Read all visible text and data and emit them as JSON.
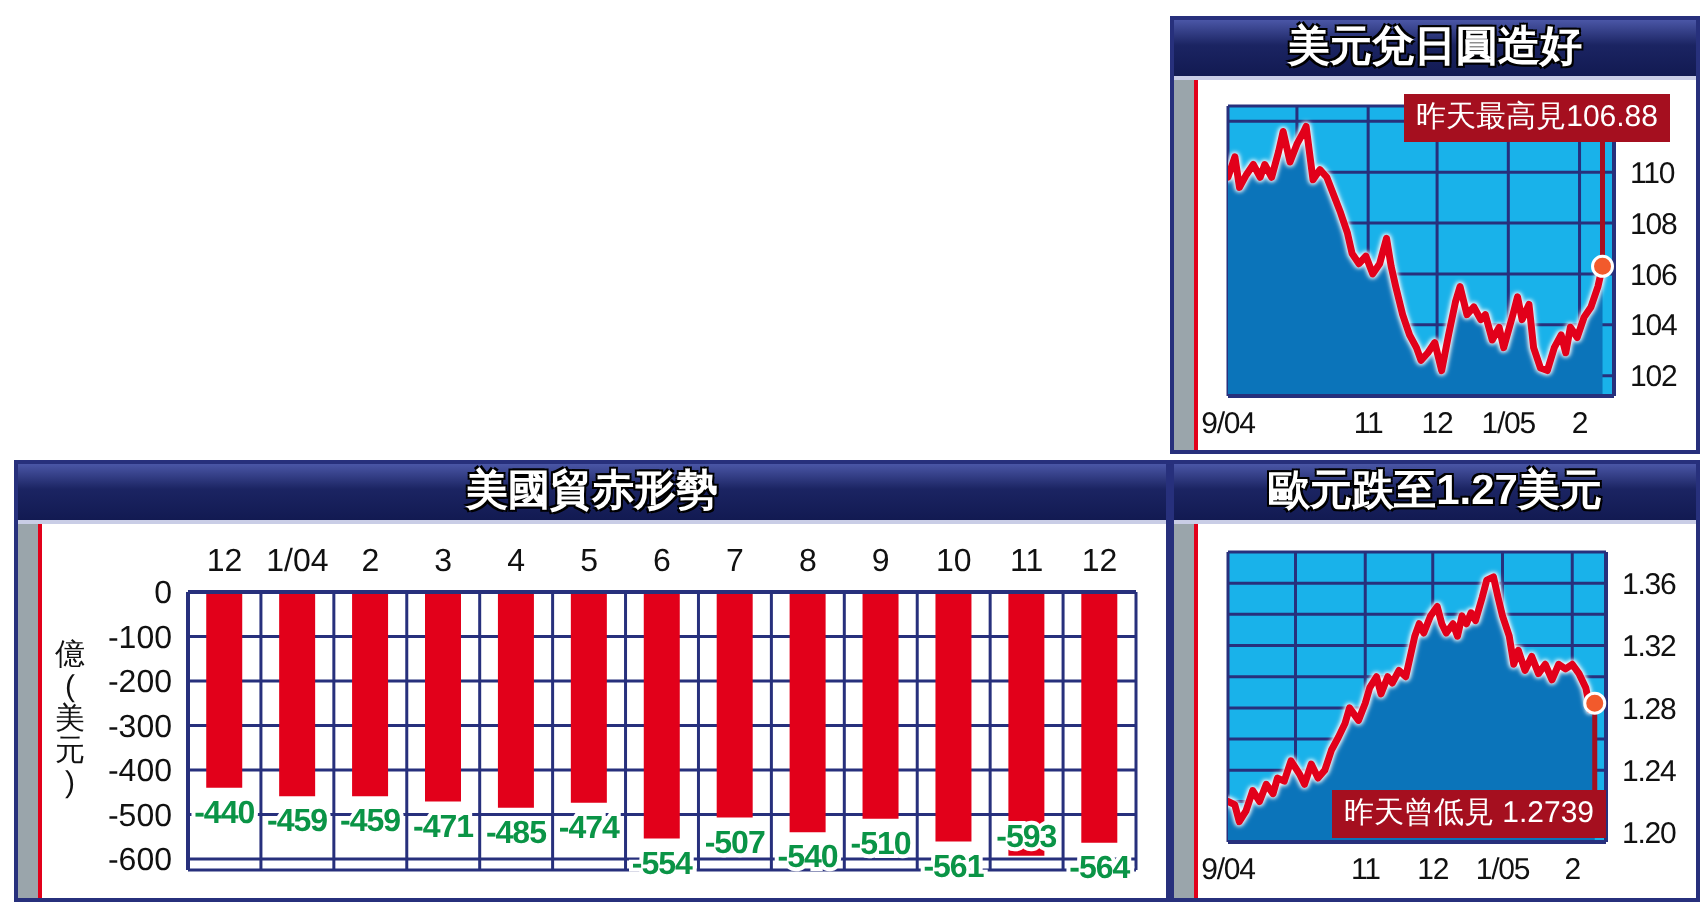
{
  "chart_data": [
    {
      "type": "area",
      "title": "美元兌日圓造好",
      "x": [
        "2004-09-01",
        "2004-09-04",
        "2004-09-06",
        "2004-09-09",
        "2004-09-12",
        "2004-09-15",
        "2004-09-17",
        "2004-09-20",
        "2004-09-23",
        "2004-09-25",
        "2004-09-28",
        "2004-10-01",
        "2004-10-04",
        "2004-10-05",
        "2004-10-08",
        "2004-10-11",
        "2004-10-14",
        "2004-10-17",
        "2004-10-20",
        "2004-10-23",
        "2004-10-25",
        "2004-10-28",
        "2004-10-31",
        "2004-11-03",
        "2004-11-06",
        "2004-11-09",
        "2004-11-11",
        "2004-11-13",
        "2004-11-16",
        "2004-11-19",
        "2004-11-22",
        "2004-11-24",
        "2004-11-27",
        "2004-11-30",
        "2004-12-03",
        "2004-12-06",
        "2004-12-09",
        "2004-12-11",
        "2004-12-14",
        "2004-12-17",
        "2004-12-20",
        "2004-12-22",
        "2004-12-25",
        "2004-12-28",
        "2004-12-30",
        "2005-01-03",
        "2005-01-05",
        "2005-01-07",
        "2005-01-10",
        "2005-01-12",
        "2005-01-15",
        "2005-01-18",
        "2005-01-21",
        "2005-01-24",
        "2005-01-26",
        "2005-01-28",
        "2005-01-31",
        "2005-02-03",
        "2005-02-06",
        "2005-02-09",
        "2005-02-11"
      ],
      "series": [
        {
          "color": "#0b74ba",
          "values": [
            109.8,
            110.6,
            109.4,
            109.9,
            110.3,
            109.8,
            110.3,
            109.8,
            110.8,
            111.6,
            110.4,
            111.1,
            111.6,
            111.8,
            109.7,
            110.1,
            109.8,
            109.1,
            108.4,
            107.6,
            106.8,
            106.4,
            106.7,
            106.0,
            106.4,
            107.4,
            106.3,
            105.5,
            104.4,
            103.6,
            103.1,
            102.6,
            102.9,
            103.3,
            102.2,
            103.6,
            104.9,
            105.5,
            104.4,
            104.7,
            104.2,
            104.4,
            103.4,
            103.9,
            103.1,
            104.4,
            105.1,
            104.2,
            104.8,
            103.1,
            102.3,
            102.2,
            103.1,
            103.6,
            102.9,
            103.9,
            103.5,
            104.3,
            104.7,
            105.5,
            106.3
          ]
        },
        {
          "type": "line",
          "color": "#e2001a",
          "values": [
            109.8,
            110.6,
            109.4,
            109.9,
            110.3,
            109.8,
            110.3,
            109.8,
            110.8,
            111.6,
            110.4,
            111.1,
            111.6,
            111.8,
            109.7,
            110.1,
            109.8,
            109.1,
            108.4,
            107.6,
            106.8,
            106.4,
            106.7,
            106.0,
            106.4,
            107.4,
            106.3,
            105.5,
            104.4,
            103.6,
            103.1,
            102.6,
            102.9,
            103.3,
            102.2,
            103.6,
            104.9,
            105.5,
            104.4,
            104.7,
            104.2,
            104.4,
            103.4,
            103.9,
            103.1,
            104.4,
            105.1,
            104.2,
            104.8,
            103.1,
            102.3,
            102.2,
            103.1,
            103.6,
            102.9,
            103.9,
            103.5,
            104.3,
            104.7,
            105.5,
            106.3
          ]
        }
      ],
      "xlim": [
        "2004-09-01",
        "2005-02-16"
      ],
      "xticks": [
        {
          "value": "2004-09-01",
          "label": "9/04"
        },
        {
          "value": "2004-10-01",
          "label": null
        },
        {
          "value": "2004-11-01",
          "label": "11"
        },
        {
          "value": "2004-12-01",
          "label": "12"
        },
        {
          "value": "2005-01-01",
          "label": "1/05"
        },
        {
          "value": "2005-02-01",
          "label": "2"
        }
      ],
      "ylim": [
        101.2,
        112.6
      ],
      "yticks": [
        102,
        104,
        106,
        108,
        110,
        {
          "value": 112,
          "label": null
        }
      ],
      "grid": true,
      "annotations": [
        {
          "text": "昨天最高見106.88",
          "x": "2005-02-11",
          "y": 106.3
        }
      ]
    },
    {
      "type": "bar",
      "title": "美國貿赤形勢",
      "categories": [
        "12",
        "1/04",
        "2",
        "3",
        "4",
        "5",
        "6",
        "7",
        "8",
        "9",
        "10",
        "11",
        "12"
      ],
      "values": [
        -440,
        -459,
        -459,
        -471,
        -485,
        -474,
        -554,
        -507,
        -540,
        -510,
        -561,
        -593,
        -564
      ],
      "color": "#e2001a",
      "ylim": [
        -625,
        0
      ],
      "yticks": [
        -600,
        -500,
        -400,
        -300,
        -200,
        -100,
        0
      ],
      "ylabel": "億(美元)",
      "grid": true,
      "data_labels": true
    },
    {
      "type": "area",
      "title": "歐元跌至1.27美元",
      "x": [
        "2004-09-01",
        "2004-09-04",
        "2004-09-06",
        "2004-09-09",
        "2004-09-12",
        "2004-09-15",
        "2004-09-18",
        "2004-09-21",
        "2004-09-23",
        "2004-09-26",
        "2004-09-29",
        "2004-10-03",
        "2004-10-05",
        "2004-10-08",
        "2004-10-11",
        "2004-10-14",
        "2004-10-17",
        "2004-10-20",
        "2004-10-23",
        "2004-10-25",
        "2004-10-27",
        "2004-10-29",
        "2004-11-01",
        "2004-11-03",
        "2004-11-06",
        "2004-11-08",
        "2004-11-11",
        "2004-11-13",
        "2004-11-16",
        "2004-11-19",
        "2004-11-21",
        "2004-11-23",
        "2004-11-25",
        "2004-11-27",
        "2004-11-30",
        "2004-12-03",
        "2004-12-05",
        "2004-12-07",
        "2004-12-10",
        "2004-12-12",
        "2004-12-14",
        "2004-12-16",
        "2004-12-18",
        "2004-12-20",
        "2004-12-23",
        "2004-12-25",
        "2004-12-28",
        "2004-12-30",
        "2005-01-01",
        "2005-01-04",
        "2005-01-06",
        "2005-01-08",
        "2005-01-11",
        "2005-01-14",
        "2005-01-17",
        "2005-01-20",
        "2005-01-23",
        "2005-01-26",
        "2005-01-29",
        "2005-02-01",
        "2005-02-04",
        "2005-02-07",
        "2005-02-09",
        "2005-02-11"
      ],
      "series": [
        {
          "color": "#0b74ba",
          "values": [
            1.22,
            1.218,
            1.207,
            1.214,
            1.227,
            1.22,
            1.231,
            1.225,
            1.235,
            1.233,
            1.246,
            1.237,
            1.231,
            1.244,
            1.235,
            1.24,
            1.253,
            1.261,
            1.27,
            1.28,
            1.276,
            1.272,
            1.283,
            1.293,
            1.3,
            1.289,
            1.3,
            1.296,
            1.304,
            1.3,
            1.313,
            1.326,
            1.334,
            1.328,
            1.339,
            1.345,
            1.334,
            1.328,
            1.334,
            1.326,
            1.339,
            1.334,
            1.341,
            1.336,
            1.351,
            1.362,
            1.364,
            1.351,
            1.339,
            1.326,
            1.308,
            1.317,
            1.304,
            1.313,
            1.302,
            1.308,
            1.298,
            1.308,
            1.305,
            1.308,
            1.302,
            1.293,
            1.279,
            1.283
          ]
        },
        {
          "type": "line",
          "color": "#e2001a",
          "values": [
            1.22,
            1.218,
            1.207,
            1.214,
            1.227,
            1.22,
            1.231,
            1.225,
            1.235,
            1.233,
            1.246,
            1.237,
            1.231,
            1.244,
            1.235,
            1.24,
            1.253,
            1.261,
            1.27,
            1.28,
            1.276,
            1.272,
            1.283,
            1.293,
            1.3,
            1.289,
            1.3,
            1.296,
            1.304,
            1.3,
            1.313,
            1.326,
            1.334,
            1.328,
            1.339,
            1.345,
            1.334,
            1.328,
            1.334,
            1.326,
            1.339,
            1.334,
            1.341,
            1.336,
            1.351,
            1.362,
            1.364,
            1.351,
            1.339,
            1.326,
            1.308,
            1.317,
            1.304,
            1.313,
            1.302,
            1.308,
            1.298,
            1.308,
            1.305,
            1.308,
            1.302,
            1.293,
            1.279,
            1.283
          ]
        }
      ],
      "xlim": [
        "2004-09-01",
        "2005-02-16"
      ],
      "xticks": [
        {
          "value": "2004-09-01",
          "label": "9/04"
        },
        {
          "value": "2004-10-01",
          "label": null
        },
        {
          "value": "2004-11-01",
          "label": "11"
        },
        {
          "value": "2004-12-01",
          "label": "12"
        },
        {
          "value": "2005-01-01",
          "label": "1/05"
        },
        {
          "value": "2005-02-01",
          "label": "2"
        }
      ],
      "ylim": [
        1.194,
        1.38
      ],
      "yticks": [
        {
          "value": 1.2,
          "label": "1.20"
        },
        {
          "value": 1.22,
          "label": null
        },
        1.24,
        {
          "value": 1.26,
          "label": null
        },
        1.28,
        {
          "value": 1.3,
          "label": null
        },
        1.32,
        {
          "value": 1.34,
          "label": null
        },
        1.36
      ],
      "grid": true,
      "annotations": [
        {
          "text": "昨天曾低見 1.2739",
          "x": "2005-02-11",
          "y": 1.283
        }
      ]
    }
  ]
}
